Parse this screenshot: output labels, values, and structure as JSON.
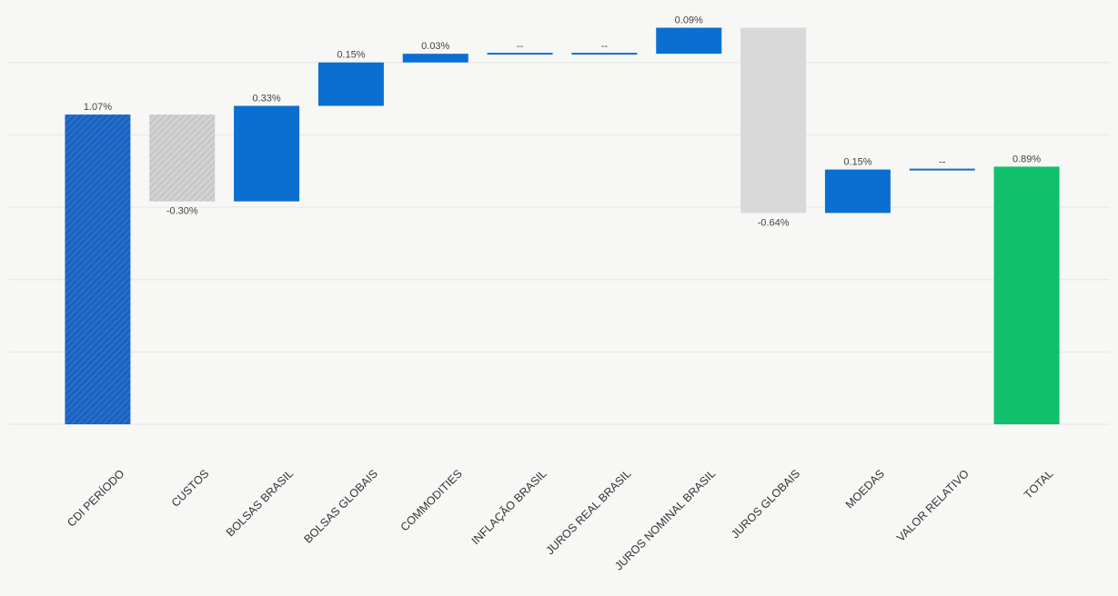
{
  "chart_data": {
    "type": "waterfall",
    "categories": [
      "CDI PERÍODO",
      "CUSTOS",
      "BOLSAS BRASIL",
      "BOLSAS GLOBAIS",
      "COMMODITIES",
      "INFLAÇÃO BRASIL",
      "JUROS REAL BRASIL",
      "JUROS NOMINAL BRASIL",
      "JUROS GLOBAIS",
      "MOEDAS",
      "VALOR RELATIVO",
      "TOTAL"
    ],
    "values": [
      1.07,
      -0.3,
      0.33,
      0.15,
      0.03,
      0,
      0,
      0.09,
      -0.64,
      0.15,
      0,
      0.89
    ],
    "value_labels": [
      "1.07%",
      "-0.30%",
      "0.33%",
      "0.15%",
      "0.03%",
      "--",
      "--",
      "0.09%",
      "-0.64%",
      "0.15%",
      "--",
      "0.89%"
    ],
    "measure": [
      "absolute",
      "relative",
      "relative",
      "relative",
      "relative",
      "relative",
      "relative",
      "relative",
      "relative",
      "relative",
      "relative",
      "absolute"
    ],
    "colors": [
      "#1a63c0",
      "#c8c8c8",
      "#0a6fd1",
      "#0a6fd1",
      "#0a6fd1",
      "#0a6fd1",
      "#0a6fd1",
      "#0a6fd1",
      "#d9d9d9",
      "#0a6fd1",
      "#0a6fd1",
      "#10c06b"
    ],
    "hatched": [
      true,
      true,
      false,
      false,
      false,
      false,
      false,
      false,
      false,
      false,
      false,
      false
    ],
    "ylim": [
      0,
      1.45
    ],
    "grid_values": [
      0,
      0.25,
      0.5,
      0.75,
      1,
      1.25
    ],
    "grid": true
  }
}
